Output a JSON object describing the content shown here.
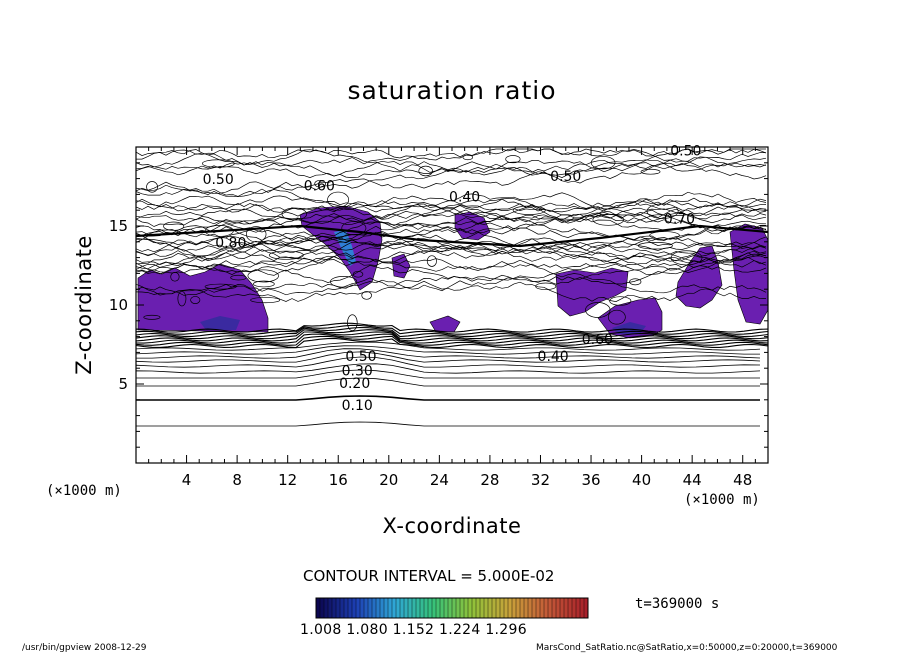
{
  "chart_data": {
    "type": "heatmap",
    "title": "saturation ratio",
    "xlabel": "X-coordinate",
    "ylabel": "Z-coordinate",
    "x_unit_label": "(×1000 m)",
    "y_unit_label": "(×1000 m)",
    "xlim": [
      0,
      50
    ],
    "ylim": [
      0,
      20
    ],
    "x_ticks": [
      4,
      8,
      12,
      16,
      20,
      24,
      28,
      32,
      36,
      40,
      44,
      48
    ],
    "y_ticks": [
      5,
      10,
      15
    ],
    "contour_labels": [
      {
        "text": "0.10",
        "x": 17.5,
        "z": 3.6
      },
      {
        "text": "0.20",
        "x": 17.3,
        "z": 5.0
      },
      {
        "text": "0.30",
        "x": 17.5,
        "z": 5.8
      },
      {
        "text": "0.50",
        "x": 17.8,
        "z": 6.7
      },
      {
        "text": "0.40",
        "x": 33.0,
        "z": 6.7
      },
      {
        "text": "0.60",
        "x": 36.5,
        "z": 7.8
      },
      {
        "text": "0.80",
        "x": 7.5,
        "z": 13.9
      },
      {
        "text": "0.50",
        "x": 6.5,
        "z": 17.9
      },
      {
        "text": "0.60",
        "x": 14.5,
        "z": 17.5
      },
      {
        "text": "0.40",
        "x": 26.0,
        "z": 16.8
      },
      {
        "text": "0.50",
        "x": 34.0,
        "z": 18.1
      },
      {
        "text": "0.70",
        "x": 43.0,
        "z": 15.4
      },
      {
        "text": "0.50",
        "x": 43.5,
        "z": 19.7
      }
    ],
    "contour_interval": "CONTOUR INTERVAL = 5.000E-02",
    "colorbar": {
      "tick_labels": [
        "1.008",
        "1.080",
        "1.152",
        "1.224",
        "1.296"
      ],
      "colors": [
        "#0b0650",
        "#1d3fb4",
        "#2fa7d6",
        "#36c27a",
        "#8fc23a",
        "#c8a23a",
        "#c45a38",
        "#a8202a"
      ]
    },
    "time_label": "t=369000 s",
    "fill_color": "#6a1fb0"
  },
  "footer": {
    "left": "/usr/bin/gpview   2008-12-29",
    "right": "MarsCond_SatRatio.nc@SatRatio,x=0:50000,z=0:20000,t=369000"
  }
}
